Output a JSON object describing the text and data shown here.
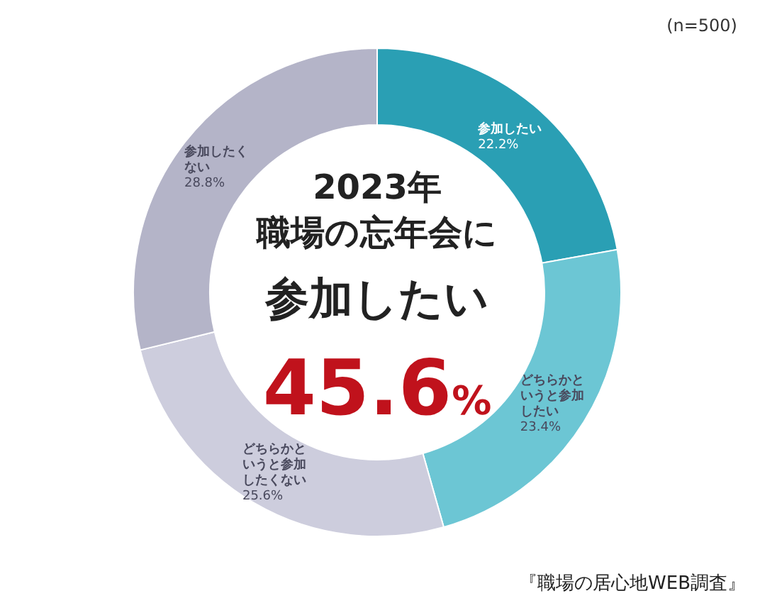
{
  "chart_data": {
    "type": "donut",
    "title": "2023年",
    "subtitle": "職場の忘年会に",
    "categories": [
      "参加したい",
      "どちらかというと参加したい",
      "どちらかというと参加したくない",
      "参加したくない"
    ],
    "values": [
      22.2,
      23.4,
      25.6,
      28.8
    ],
    "value_labels": [
      "22.2%",
      "23.4%",
      "25.6%",
      "28.8%"
    ],
    "colors": [
      "#2a9fb4",
      "#6cc6d4",
      "#cdcddd",
      "#b4b4c8"
    ],
    "annotations": [
      "45.6%",
      "(n=500)",
      "『職場の居心地WEB調査』",
      "参加したい"
    ]
  }
}
